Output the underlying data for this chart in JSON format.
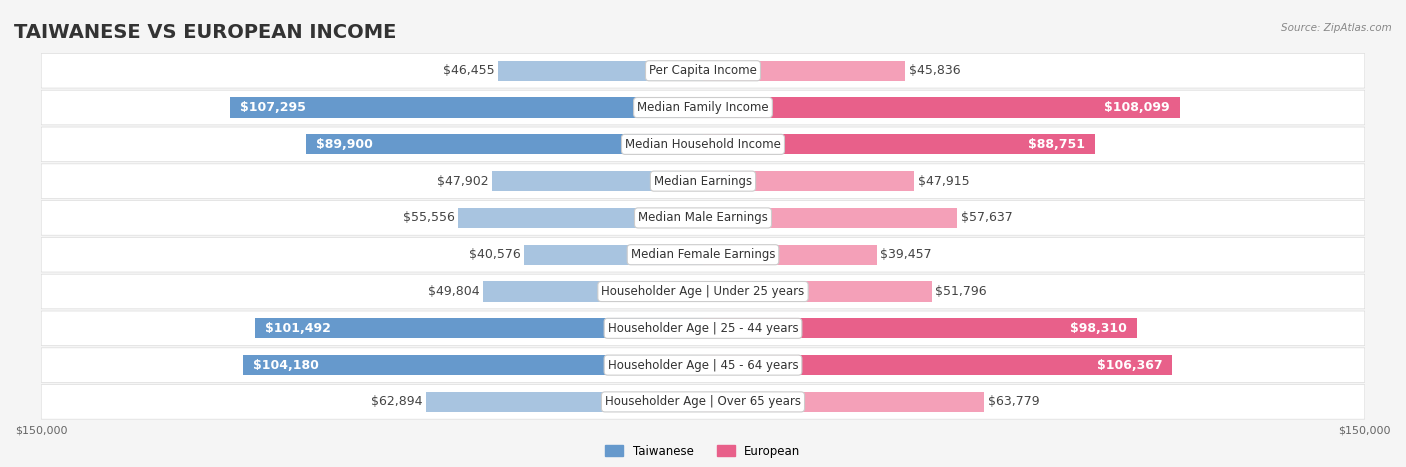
{
  "title": "TAIWANESE VS EUROPEAN INCOME",
  "source": "Source: ZipAtlas.com",
  "categories": [
    "Per Capita Income",
    "Median Family Income",
    "Median Household Income",
    "Median Earnings",
    "Median Male Earnings",
    "Median Female Earnings",
    "Householder Age | Under 25 years",
    "Householder Age | 25 - 44 years",
    "Householder Age | 45 - 64 years",
    "Householder Age | Over 65 years"
  ],
  "taiwanese_values": [
    46455,
    107295,
    89900,
    47902,
    55556,
    40576,
    49804,
    101492,
    104180,
    62894
  ],
  "european_values": [
    45836,
    108099,
    88751,
    47915,
    57637,
    39457,
    51796,
    98310,
    106367,
    63779
  ],
  "taiwanese_labels": [
    "$46,455",
    "$107,295",
    "$89,900",
    "$47,902",
    "$55,556",
    "$40,576",
    "$49,804",
    "$101,492",
    "$104,180",
    "$62,894"
  ],
  "european_labels": [
    "$45,836",
    "$108,099",
    "$88,751",
    "$47,915",
    "$57,637",
    "$39,457",
    "$51,796",
    "$98,310",
    "$106,367",
    "$63,779"
  ],
  "max_value": 150000,
  "taiwanese_color_light": "#a8c4e0",
  "taiwanese_color_dark": "#6699cc",
  "european_color_light": "#f4a0b8",
  "european_color_dark": "#e8608a",
  "bg_color": "#f5f5f5",
  "row_bg": "#ffffff",
  "label_bg": "#ffffff",
  "threshold_for_inside_label": 80000,
  "title_fontsize": 14,
  "label_fontsize": 9,
  "cat_fontsize": 8.5,
  "axis_label_fontsize": 8
}
